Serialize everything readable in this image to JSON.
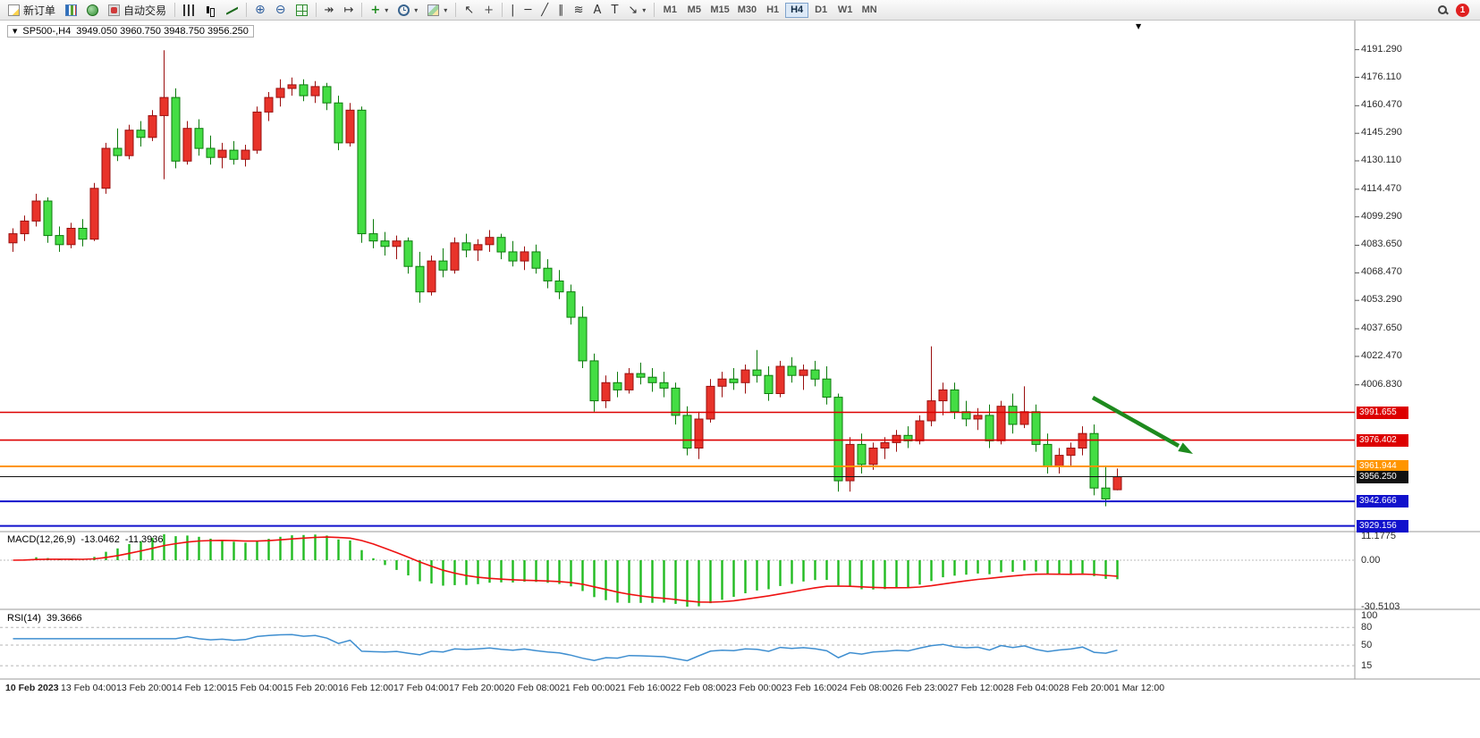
{
  "toolbar": {
    "new_order_label": "新订单",
    "auto_trading_label": "自动交易",
    "timeframes": [
      "M1",
      "M5",
      "M15",
      "M30",
      "H1",
      "H4",
      "D1",
      "W1",
      "MN"
    ],
    "active_timeframe": "H4",
    "notification_count": "1"
  },
  "glyphs": {
    "triangle": "▼",
    "dropdown": "▾",
    "cursor": "↖",
    "crosshair": "+",
    "vertical_line": "|",
    "horizontal_line": "─",
    "trendline": "╱",
    "channel": "∥",
    "fibonacci": "≋",
    "text_tool": "A",
    "label_tool": "T",
    "arrows_tool": "↘",
    "autoscroll": "↠",
    "chart_shift": "↦",
    "add_indicator": "+",
    "zoom_in": "⊕",
    "zoom_out": "⊖"
  },
  "chart_data": {
    "type": "candlestick",
    "symbol": "SP500-",
    "timeframe": "H4",
    "title_label": "SP500-,H4",
    "ohlc_display": "3949.050 3960.750 3948.750 3956.250",
    "last_ohlc": {
      "open": 3949.05,
      "high": 3960.75,
      "low": 3948.75,
      "close": 3956.25
    },
    "y_range": [
      3927,
      4198
    ],
    "y_axis_ticks": [
      "4191.290",
      "4176.110",
      "4160.470",
      "4145.290",
      "4130.110",
      "4114.470",
      "4099.290",
      "4083.650",
      "4068.470",
      "4053.290",
      "4037.650",
      "4022.470",
      "4006.830"
    ],
    "x_axis_labels": [
      "10 Feb 2023",
      "13 Feb 04:00",
      "13 Feb 20:00",
      "14 Feb 12:00",
      "15 Feb 04:00",
      "15 Feb 20:00",
      "16 Feb 12:00",
      "17 Feb 04:00",
      "17 Feb 20:00",
      "20 Feb 08:00",
      "21 Feb 00:00",
      "21 Feb 16:00",
      "22 Feb 08:00",
      "23 Feb 00:00",
      "23 Feb 16:00",
      "24 Feb 08:00",
      "26 Feb 23:00",
      "27 Feb 12:00",
      "28 Feb 04:00",
      "28 Feb 20:00",
      "1 Mar 12:00"
    ],
    "colors": {
      "bull": "#e8332a",
      "bull_border": "#9a0f0f",
      "bear": "#44dd44",
      "bear_border": "#0c7a0c"
    },
    "levels": [
      {
        "label": "3991.655",
        "price": 3991.655,
        "color": "#dd0000",
        "width": 1.6
      },
      {
        "label": "3976.402",
        "price": 3976.402,
        "color": "#dd0000",
        "width": 1.6
      },
      {
        "label": "3961.944",
        "price": 3961.944,
        "color": "#ff9500",
        "width": 2
      },
      {
        "label": "3956.250",
        "price": 3956.25,
        "color": "#111111",
        "width": 1,
        "current": true
      },
      {
        "label": "3942.666",
        "price": 3942.666,
        "color": "#1111cc",
        "width": 2
      },
      {
        "label": "3929.156",
        "price": 3929.156,
        "color": "#1111cc",
        "width": 2
      }
    ],
    "candles": [
      [
        4085,
        4093,
        4080,
        4090
      ],
      [
        4090,
        4100,
        4086,
        4097
      ],
      [
        4097,
        4112,
        4094,
        4108
      ],
      [
        4108,
        4110,
        4085,
        4089
      ],
      [
        4089,
        4094,
        4080,
        4084
      ],
      [
        4084,
        4096,
        4082,
        4093
      ],
      [
        4093,
        4098,
        4083,
        4087
      ],
      [
        4087,
        4118,
        4086,
        4115
      ],
      [
        4115,
        4140,
        4112,
        4137
      ],
      [
        4137,
        4148,
        4130,
        4133
      ],
      [
        4133,
        4150,
        4131,
        4147
      ],
      [
        4147,
        4152,
        4138,
        4143
      ],
      [
        4143,
        4158,
        4141,
        4155
      ],
      [
        4155,
        4191,
        4120,
        4165
      ],
      [
        4165,
        4170,
        4126,
        4130
      ],
      [
        4130,
        4152,
        4128,
        4148
      ],
      [
        4148,
        4153,
        4133,
        4137
      ],
      [
        4137,
        4144,
        4128,
        4132
      ],
      [
        4132,
        4140,
        4126,
        4136
      ],
      [
        4136,
        4141,
        4128,
        4131
      ],
      [
        4131,
        4139,
        4127,
        4136
      ],
      [
        4136,
        4160,
        4134,
        4157
      ],
      [
        4157,
        4168,
        4152,
        4165
      ],
      [
        4165,
        4175,
        4160,
        4170
      ],
      [
        4170,
        4176,
        4166,
        4172
      ],
      [
        4172,
        4175,
        4163,
        4166
      ],
      [
        4166,
        4174,
        4162,
        4171
      ],
      [
        4171,
        4173,
        4158,
        4162
      ],
      [
        4162,
        4166,
        4136,
        4140
      ],
      [
        4140,
        4162,
        4138,
        4158
      ],
      [
        4158,
        4160,
        4085,
        4090
      ],
      [
        4090,
        4098,
        4082,
        4086
      ],
      [
        4086,
        4091,
        4078,
        4083
      ],
      [
        4083,
        4089,
        4076,
        4086
      ],
      [
        4086,
        4088,
        4068,
        4072
      ],
      [
        4072,
        4080,
        4052,
        4058
      ],
      [
        4058,
        4078,
        4056,
        4075
      ],
      [
        4075,
        4082,
        4066,
        4070
      ],
      [
        4070,
        4088,
        4068,
        4085
      ],
      [
        4085,
        4090,
        4077,
        4081
      ],
      [
        4081,
        4087,
        4075,
        4084
      ],
      [
        4084,
        4092,
        4080,
        4088
      ],
      [
        4088,
        4090,
        4076,
        4080
      ],
      [
        4080,
        4086,
        4072,
        4075
      ],
      [
        4075,
        4083,
        4070,
        4080
      ],
      [
        4080,
        4084,
        4068,
        4071
      ],
      [
        4071,
        4076,
        4060,
        4064
      ],
      [
        4064,
        4070,
        4054,
        4058
      ],
      [
        4058,
        4062,
        4040,
        4044
      ],
      [
        4044,
        4050,
        4016,
        4020
      ],
      [
        4020,
        4024,
        3992,
        3998
      ],
      [
        3998,
        4012,
        3994,
        4008
      ],
      [
        4008,
        4014,
        4000,
        4004
      ],
      [
        4004,
        4016,
        4002,
        4013
      ],
      [
        4013,
        4019,
        4007,
        4011
      ],
      [
        4011,
        4016,
        4003,
        4008
      ],
      [
        4008,
        4014,
        4000,
        4005
      ],
      [
        4005,
        4008,
        3985,
        3990
      ],
      [
        3990,
        3995,
        3968,
        3972
      ],
      [
        3972,
        3992,
        3966,
        3988
      ],
      [
        3988,
        4010,
        3986,
        4006
      ],
      [
        4006,
        4014,
        4000,
        4010
      ],
      [
        4010,
        4016,
        4004,
        4008
      ],
      [
        4008,
        4018,
        4002,
        4015
      ],
      [
        4015,
        4026,
        4008,
        4012
      ],
      [
        4012,
        4017,
        3998,
        4002
      ],
      [
        4002,
        4020,
        4000,
        4017
      ],
      [
        4017,
        4022,
        4008,
        4012
      ],
      [
        4012,
        4018,
        4004,
        4015
      ],
      [
        4015,
        4020,
        4006,
        4010
      ],
      [
        4010,
        4017,
        3996,
        4000
      ],
      [
        4000,
        4002,
        3948,
        3954
      ],
      [
        3954,
        3978,
        3948,
        3974
      ],
      [
        3974,
        3980,
        3958,
        3963
      ],
      [
        3963,
        3975,
        3960,
        3972
      ],
      [
        3972,
        3978,
        3966,
        3975
      ],
      [
        3975,
        3982,
        3970,
        3979
      ],
      [
        3979,
        3984,
        3972,
        3976
      ],
      [
        3976,
        3990,
        3974,
        3987
      ],
      [
        3987,
        4028,
        3984,
        3998
      ],
      [
        3998,
        4008,
        3990,
        4004
      ],
      [
        4004,
        4008,
        3988,
        3992
      ],
      [
        3992,
        3998,
        3984,
        3988
      ],
      [
        3988,
        3994,
        3982,
        3990
      ],
      [
        3990,
        3996,
        3972,
        3976
      ],
      [
        3976,
        3998,
        3974,
        3995
      ],
      [
        3995,
        4002,
        3980,
        3985
      ],
      [
        3985,
        4006,
        3983,
        3992
      ],
      [
        3992,
        3996,
        3970,
        3974
      ],
      [
        3974,
        3980,
        3958,
        3962
      ],
      [
        3962,
        3972,
        3958,
        3968
      ],
      [
        3968,
        3975,
        3962,
        3972
      ],
      [
        3972,
        3984,
        3968,
        3980
      ],
      [
        3980,
        3985,
        3946,
        3950
      ],
      [
        3950,
        3962,
        3940,
        3944
      ],
      [
        3949.05,
        3960.75,
        3948.75,
        3956.25
      ]
    ],
    "indicators": {
      "macd": {
        "label": "MACD(12,26,9)",
        "value_main": "-13.0462",
        "value_signal": "-11.3936",
        "params": [
          12,
          26,
          9
        ],
        "axis_labels": [
          "11.1775",
          "0.00",
          "-30.5103"
        ],
        "histogram_color": "#22bb22",
        "signal_color": "#ee1111"
      },
      "rsi": {
        "label": "RSI(14)",
        "value": "39.3666",
        "period": 14,
        "axis_labels": [
          "100",
          "80",
          "50",
          "15"
        ],
        "levels": [
          80,
          50,
          15
        ],
        "line_color": "#3e8ed0"
      }
    },
    "annotation": {
      "type": "trend-arrow",
      "direction": "down-right",
      "color": "#1e8a1e"
    }
  }
}
